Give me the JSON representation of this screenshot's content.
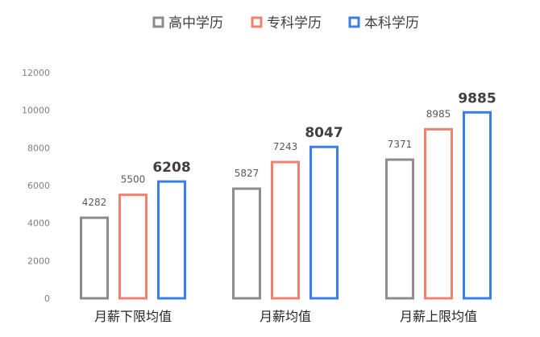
{
  "chart_data": {
    "type": "bar",
    "title": "",
    "xlabel": "",
    "ylabel": "",
    "ylim": [
      0,
      12000
    ],
    "yticks": [
      0,
      2000,
      4000,
      6000,
      8000,
      10000,
      12000
    ],
    "grid": false,
    "legend_position": "top",
    "categories": [
      "月薪下限均值",
      "月薪均值",
      "月薪上限均值"
    ],
    "series": [
      {
        "name": "高中学历",
        "color": "#8c8c8c",
        "values": [
          4282,
          5827,
          7371
        ]
      },
      {
        "name": "专科学历",
        "color": "#f08070",
        "values": [
          5500,
          7243,
          8985
        ]
      },
      {
        "name": "本科学历",
        "color": "#3a7ee8",
        "values": [
          6208,
          8047,
          9885
        ]
      }
    ]
  }
}
